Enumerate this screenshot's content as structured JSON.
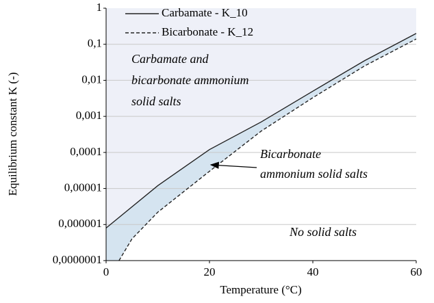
{
  "chart_data": {
    "type": "line",
    "xlabel": "Temperature (°C)",
    "ylabel": "Equilibrium constant K (-)",
    "xlim": [
      0,
      60
    ],
    "xticks": [
      0,
      20,
      40,
      60
    ],
    "ylim": [
      1e-07,
      1
    ],
    "yticks": [
      {
        "value": 1e-07,
        "label": "0,0000001"
      },
      {
        "value": 1e-06,
        "label": "0,000001"
      },
      {
        "value": 1e-05,
        "label": "0,00001"
      },
      {
        "value": 0.0001,
        "label": "0,0001"
      },
      {
        "value": 0.001,
        "label": "0,001"
      },
      {
        "value": 0.01,
        "label": "0,01"
      },
      {
        "value": 0.1,
        "label": "0,1"
      },
      1
    ],
    "log_y": true,
    "grid": true,
    "legend": "top-left",
    "above_fill": "#eef0f8",
    "between_fill": "#d5e4f0",
    "series": [
      {
        "name": "Carbamate - K_10",
        "color": "#222222",
        "dash": false,
        "x": [
          0,
          10,
          20,
          30,
          40,
          50,
          60
        ],
        "values": [
          8e-07,
          1.2e-05,
          0.00012,
          0.0007,
          0.005,
          0.035,
          0.2
        ]
      },
      {
        "name": "Bicarbonate - K_12",
        "color": "#222222",
        "dash": true,
        "x": [
          2.5,
          5,
          10,
          20,
          30,
          40,
          50,
          60
        ],
        "values": [
          1e-07,
          4e-07,
          2.2e-06,
          3e-05,
          0.00039,
          0.0033,
          0.025,
          0.14
        ]
      }
    ],
    "annotations": [
      {
        "lines": [
          "Carbamate and",
          "bicarbonate ammonium",
          "solid salts"
        ]
      },
      {
        "lines": [
          "Bicarbonate",
          "ammonium solid salts"
        ]
      },
      {
        "lines": [
          "No solid salts"
        ]
      }
    ]
  }
}
